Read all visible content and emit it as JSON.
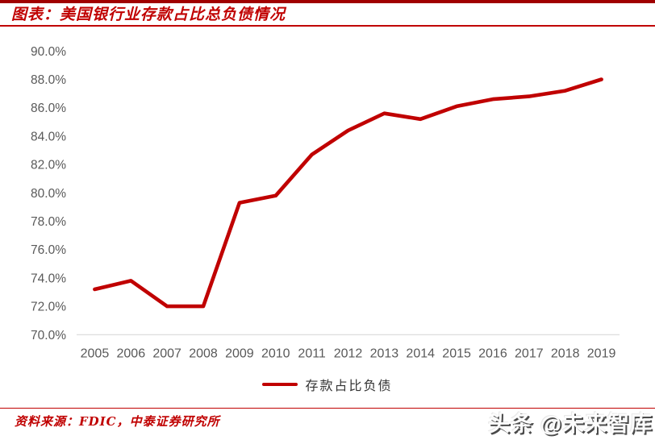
{
  "header": {
    "title": "图表：美国银行业存款占比总负债情况"
  },
  "chart_data": {
    "type": "line",
    "title": "美国银行业存款占比总负债情况",
    "categories": [
      "2005",
      "2006",
      "2007",
      "2008",
      "2009",
      "2010",
      "2011",
      "2012",
      "2013",
      "2014",
      "2015",
      "2016",
      "2017",
      "2018",
      "2019"
    ],
    "series": [
      {
        "name": "存款占比负债",
        "color": "#C00000",
        "values": [
          73.2,
          73.8,
          72.0,
          72.0,
          79.3,
          79.8,
          82.7,
          84.4,
          85.6,
          85.2,
          86.1,
          86.6,
          86.8,
          87.2,
          88.0
        ]
      }
    ],
    "xlabel": "",
    "ylabel": "",
    "ylim": [
      70,
      90
    ],
    "ytick_step": 2,
    "ytick_labels": [
      "70.0%",
      "72.0%",
      "74.0%",
      "76.0%",
      "78.0%",
      "80.0%",
      "82.0%",
      "84.0%",
      "86.0%",
      "88.0%",
      "90.0%"
    ],
    "grid": false,
    "legend_position": "bottom",
    "axis_line_color": "#D9D9D9",
    "tick_label_color": "#595959"
  },
  "legend": {
    "label": "存款占比负债",
    "swatch_color": "#C00000"
  },
  "footer": {
    "source_label": "资料来源：FDIC，中泰证券研究所"
  },
  "watermark": {
    "text": "头条 @未来智库"
  },
  "theme": {
    "accent": "#C00000",
    "top_bar": "#A00000"
  }
}
